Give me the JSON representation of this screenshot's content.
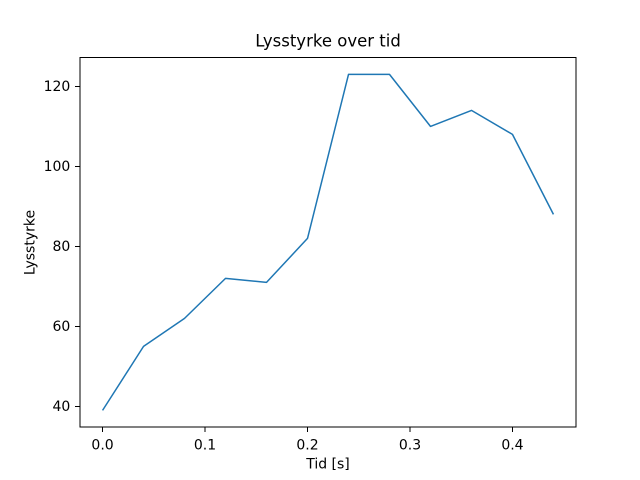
{
  "chart_data": {
    "type": "line",
    "title": "Lysstyrke over tid",
    "xlabel": "Tid [s]",
    "ylabel": "Lysstyrke",
    "x": [
      0.0,
      0.04,
      0.08,
      0.12,
      0.16,
      0.2,
      0.24,
      0.28,
      0.32,
      0.36,
      0.4,
      0.44
    ],
    "y": [
      39,
      55,
      62,
      72,
      71,
      82,
      123,
      123,
      110,
      114,
      108,
      88
    ],
    "xlim": [
      -0.022,
      0.462
    ],
    "ylim": [
      34.8,
      127.2
    ],
    "xticks": [
      0.0,
      0.1,
      0.2,
      0.3,
      0.4
    ],
    "xtick_labels": [
      "0.0",
      "0.1",
      "0.2",
      "0.3",
      "0.4"
    ],
    "yticks": [
      40,
      60,
      80,
      100,
      120
    ],
    "ytick_labels": [
      "40",
      "60",
      "80",
      "100",
      "120"
    ],
    "line_color": "#1f77b4",
    "axis_color": "#000000",
    "background_color": "#ffffff",
    "grid": false,
    "legend": "none"
  }
}
